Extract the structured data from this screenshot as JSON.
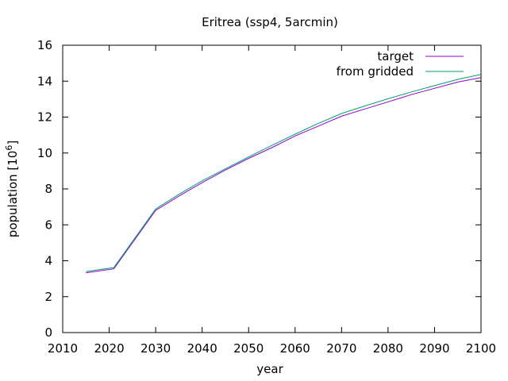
{
  "chart_data": {
    "type": "line",
    "title": "Eritrea (ssp4, 5arcmin)",
    "xlabel": "year",
    "ylabel_prefix": "population [10",
    "ylabel_sup": "6",
    "ylabel_suffix": "]",
    "xlim": [
      2010,
      2100
    ],
    "ylim": [
      0,
      16
    ],
    "xticks": [
      2010,
      2020,
      2030,
      2040,
      2050,
      2060,
      2070,
      2080,
      2090,
      2100
    ],
    "yticks": [
      0,
      2,
      4,
      6,
      8,
      10,
      12,
      14,
      16
    ],
    "grid": false,
    "legend_position": "top-right",
    "series": [
      {
        "name": "target",
        "color": "#9400d3",
        "x": [
          2015,
          2021,
          2030,
          2035,
          2040,
          2045,
          2050,
          2055,
          2060,
          2065,
          2070,
          2075,
          2080,
          2085,
          2090,
          2095,
          2100
        ],
        "y": [
          3.33,
          3.55,
          6.8,
          7.6,
          8.35,
          9.05,
          9.7,
          10.3,
          10.95,
          11.5,
          12.05,
          12.45,
          12.85,
          13.25,
          13.6,
          13.95,
          14.2
        ]
      },
      {
        "name": "from gridded",
        "color": "#009e73",
        "x": [
          2015,
          2021,
          2030,
          2035,
          2040,
          2045,
          2050,
          2055,
          2060,
          2065,
          2070,
          2075,
          2080,
          2085,
          2090,
          2095,
          2100
        ],
        "y": [
          3.4,
          3.62,
          6.88,
          7.7,
          8.45,
          9.12,
          9.78,
          10.42,
          11.05,
          11.65,
          12.2,
          12.62,
          13.02,
          13.4,
          13.75,
          14.1,
          14.38
        ]
      }
    ]
  }
}
